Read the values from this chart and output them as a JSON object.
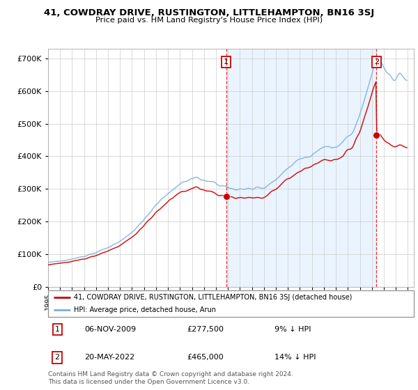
{
  "title": "41, COWDRAY DRIVE, RUSTINGTON, LITTLEHAMPTON, BN16 3SJ",
  "subtitle": "Price paid vs. HM Land Registry's House Price Index (HPI)",
  "legend_property": "41, COWDRAY DRIVE, RUSTINGTON, LITTLEHAMPTON, BN16 3SJ (detached house)",
  "legend_hpi": "HPI: Average price, detached house, Arun",
  "transaction1_date": "06-NOV-2009",
  "transaction1_price": "£277,500",
  "transaction1_pct": "9% ↓ HPI",
  "transaction2_date": "20-MAY-2022",
  "transaction2_price": "£465,000",
  "transaction2_pct": "14% ↓ HPI",
  "footer": "Contains HM Land Registry data © Crown copyright and database right 2024.\nThis data is licensed under the Open Government Licence v3.0.",
  "property_color": "#cc0000",
  "hpi_color": "#7ab0d4",
  "shade_color": "#ddeeff",
  "marker1_x_year": 2009.85,
  "marker2_x_year": 2022.38,
  "marker1_price": 277500,
  "marker2_price": 465000,
  "ylim": [
    0,
    730000
  ],
  "xlim_start": 1995,
  "xlim_end": 2025.5
}
